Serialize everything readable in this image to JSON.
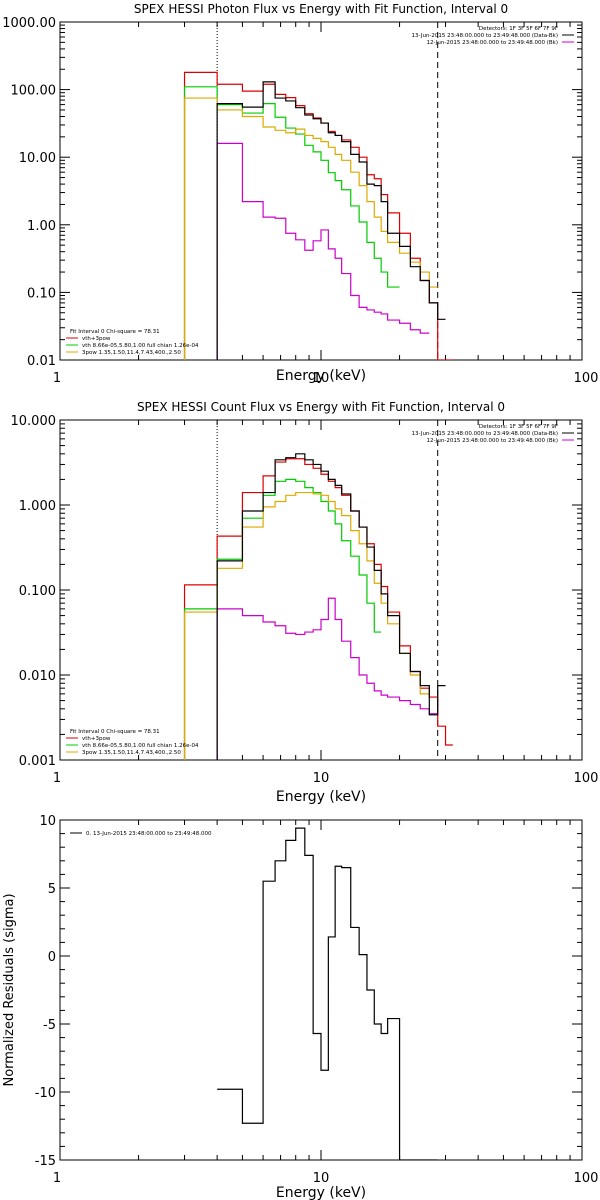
{
  "chart_data": [
    {
      "type": "line",
      "title": "SPEX HESSI Photon Flux vs Energy with Fit Function, Interval 0",
      "xlabel": "Energy (keV)",
      "ylabel": "",
      "xscale": "log",
      "yscale": "log",
      "xlim": [
        1,
        100
      ],
      "ylim": [
        0.01,
        1000
      ],
      "x_ticks": [
        "1",
        "10",
        "100"
      ],
      "y_ticks": [
        "0.01",
        "0.10",
        "1.00",
        "10.00",
        "100.00",
        "1000.00"
      ],
      "legend_top": [
        "Detectors: 1F 3F 5F 6F 7F 9F",
        "13-Jun-2015 23:48:00.000 to 23:49:48.000 (Data-Bk)",
        "12-Jun-2015 23:48:00.000 to 23:49:48.000 (Bk)"
      ],
      "legend_bottom": [
        "Fit Interval 0   Chi-square = 78.31",
        "vth+3pow",
        "vth 8.66e-05,5.80,1.00   full chian 1.26e-04",
        "3pow 1.35,1.50,11.4,7.43,400.,2.50"
      ],
      "vlines": [
        4,
        28
      ],
      "bin_edges": [
        3,
        4,
        5,
        6,
        6.67,
        7.33,
        8,
        8.67,
        9.33,
        10,
        10.67,
        11.33,
        12,
        13,
        14,
        15,
        16,
        17,
        18,
        20,
        22,
        24,
        26,
        28,
        30,
        32
      ],
      "series": [
        {
          "name": "13-Jun-2015 23:48:00.000 to 23:49:48.000 (Data-Bk)",
          "color": "#000000",
          "values": [
            null,
            62,
            55,
            130,
            75,
            68,
            54,
            42,
            37,
            32,
            23,
            21,
            17,
            11,
            8.5,
            4,
            3.8,
            2.2,
            0.75,
            0.48,
            0.24,
            0.15,
            0.07,
            0.04,
            null
          ]
        },
        {
          "name": "12-Jun-2015 23:48:00.000 to 23:49:48.000 (Bk)",
          "color": "#cc00cc",
          "values": [
            null,
            16,
            2.2,
            1.3,
            1.25,
            0.75,
            0.6,
            0.42,
            0.58,
            0.84,
            0.44,
            0.32,
            0.19,
            0.09,
            0.06,
            0.055,
            0.051,
            0.048,
            0.039,
            0.035,
            0.028,
            0.025,
            null,
            null,
            null
          ]
        },
        {
          "name": "vth+3pow",
          "color": "#dd0000",
          "values": [
            180,
            120,
            95,
            120,
            85,
            76,
            58,
            44,
            38,
            32,
            24,
            21,
            18,
            14,
            10,
            5.5,
            4.8,
            2.8,
            1.5,
            0.75,
            0.32,
            0.15,
            0.07,
            0.01,
            0.009
          ]
        },
        {
          "name": "vth 8.66e-05,5.80,1.00   full chian 1.26e-04",
          "color": "#00cc00",
          "values": [
            110,
            60,
            45,
            62,
            39,
            27,
            22,
            15,
            12,
            9.0,
            5.9,
            4.5,
            3.3,
            1.9,
            1.1,
            0.55,
            0.32,
            0.2,
            0.12,
            null,
            null,
            null,
            null,
            null,
            null
          ]
        },
        {
          "name": "3pow 1.35,1.50,11.4,7.43,400.,2.50",
          "color": "#ddaa00",
          "values": [
            75,
            50,
            40,
            28,
            25,
            23,
            26,
            21,
            19,
            17,
            14,
            11,
            9,
            6,
            3.8,
            2.2,
            1.3,
            0.8,
            0.55,
            0.38,
            0.28,
            0.2,
            0.12,
            null,
            null
          ]
        }
      ]
    },
    {
      "type": "line",
      "title": "SPEX HESSI Count Flux vs Energy with Fit Function, Interval 0",
      "xlabel": "Energy (keV)",
      "ylabel": "",
      "xscale": "log",
      "yscale": "log",
      "xlim": [
        1,
        100
      ],
      "ylim": [
        0.001,
        10
      ],
      "x_ticks": [
        "1",
        "10",
        "100"
      ],
      "y_ticks": [
        "0.001",
        "0.010",
        "0.100",
        "1.000",
        "10.000"
      ],
      "legend_top": [
        "Detectors: 1F 3F 5F 6F 7F 9F",
        "13-Jun-2015 23:48:00.000 to 23:49:48.000 (Data-Bk)",
        "12-Jun-2015 23:48:00.000 to 23:49:48.000 (Bk)"
      ],
      "legend_bottom": [
        "Fit Interval 0   Chi-square = 78.31",
        "vth+3pow",
        "vth 8.66e-05,5.80,1.00   full chian 1.26e-04",
        "3pow 1.35,1.50,11.4,7.43,400.,2.50"
      ],
      "vlines": [
        4,
        28
      ],
      "bin_edges": [
        3,
        4,
        5,
        6,
        6.67,
        7.33,
        8,
        8.67,
        9.33,
        10,
        10.67,
        11.33,
        12,
        13,
        14,
        15,
        16,
        17,
        18,
        20,
        22,
        24,
        26,
        28,
        30,
        32
      ],
      "series": [
        {
          "name": "13-Jun-2015 23:48:00.000 to 23:49:48.000 (Data-Bk)",
          "color": "#000000",
          "values": [
            null,
            0.22,
            0.85,
            1.4,
            3.4,
            3.6,
            4.0,
            3.4,
            3.0,
            2.5,
            2.0,
            1.7,
            1.35,
            0.85,
            0.55,
            0.32,
            0.17,
            0.09,
            0.05,
            0.018,
            0.011,
            0.0075,
            0.0034,
            0.0075,
            null
          ]
        },
        {
          "name": "12-Jun-2015 23:48:00.000 to 23:49:48.000 (Bk)",
          "color": "#cc00cc",
          "values": [
            null,
            0.06,
            0.05,
            0.042,
            0.038,
            0.031,
            0.03,
            0.032,
            0.034,
            0.045,
            0.08,
            0.045,
            0.025,
            0.016,
            0.01,
            0.008,
            0.0065,
            0.0058,
            0.0055,
            0.005,
            0.0045,
            0.004,
            0.0035,
            null,
            null
          ]
        },
        {
          "name": "vth+3pow",
          "color": "#dd0000",
          "values": [
            0.115,
            0.43,
            1.4,
            2.2,
            3.2,
            3.5,
            3.5,
            3.0,
            2.7,
            2.3,
            1.9,
            1.6,
            1.3,
            0.85,
            0.55,
            0.35,
            0.2,
            0.11,
            0.055,
            0.022,
            0.011,
            0.007,
            0.0055,
            0.0025,
            0.0015
          ]
        },
        {
          "name": "vth 8.66e-05,5.80,1.00   full chian 1.26e-04",
          "color": "#00cc00",
          "values": [
            0.06,
            0.23,
            0.7,
            1.3,
            1.9,
            2.0,
            1.9,
            1.6,
            1.4,
            1.1,
            0.85,
            0.6,
            0.38,
            0.25,
            0.15,
            0.07,
            0.032,
            null,
            null,
            null,
            null,
            null,
            null,
            null,
            null
          ]
        },
        {
          "name": "3pow 1.35,1.50,11.4,7.43,400.,2.50",
          "color": "#ddaa00",
          "values": [
            0.055,
            0.18,
            0.55,
            0.95,
            1.1,
            1.3,
            1.4,
            1.4,
            1.35,
            1.3,
            1.1,
            0.9,
            0.75,
            0.5,
            0.35,
            0.22,
            0.12,
            0.07,
            0.04,
            0.018,
            0.01,
            0.006,
            null,
            null,
            null
          ]
        }
      ]
    },
    {
      "type": "line",
      "title": "",
      "xlabel": "Energy (keV)",
      "ylabel": "Normalized Residuals (sigma)",
      "xscale": "log",
      "yscale": "linear",
      "xlim": [
        1,
        100
      ],
      "ylim": [
        -15,
        10
      ],
      "x_ticks": [
        "1",
        "10",
        "100"
      ],
      "y_ticks": [
        "-15",
        "-10",
        "-5",
        "0",
        "5",
        "10"
      ],
      "legend": [
        "0. 13-Jun-2015 23:48:00.000 to 23:49:48.000"
      ],
      "bin_edges": [
        4,
        5,
        6,
        6.67,
        7.33,
        8,
        8.67,
        9.33,
        10,
        10.67,
        11.33,
        12,
        13,
        14,
        15,
        16,
        17,
        18,
        20,
        22,
        24,
        26,
        28
      ],
      "series": [
        {
          "name": "0. 13-Jun-2015 23:48:00.000 to 23:49:48.000",
          "color": "#000000",
          "values": [
            -9.8,
            -12.3,
            5.5,
            7.0,
            8.5,
            9.4,
            7.4,
            -5.7,
            -8.4,
            1.4,
            6.6,
            6.5,
            2.1,
            0.1,
            -2.5,
            -5.0,
            -5.7,
            -4.6,
            -15,
            -15,
            -15,
            -15
          ]
        }
      ]
    }
  ]
}
